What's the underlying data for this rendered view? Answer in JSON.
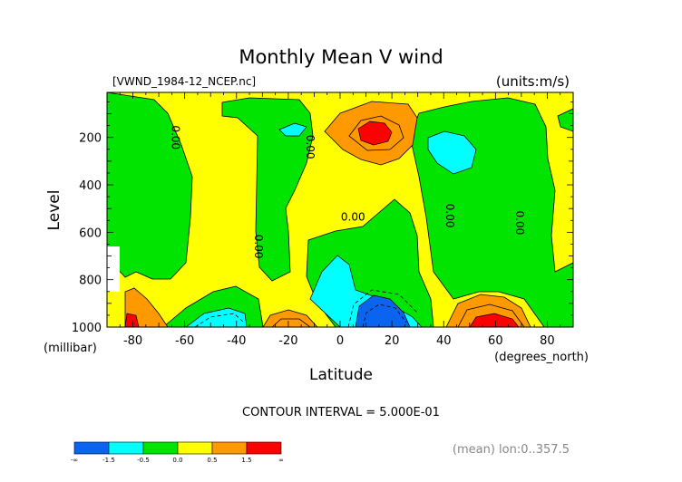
{
  "chart_data": {
    "type": "heatmap",
    "title": "Monthly Mean V wind",
    "dataset": "[VWND_1984-12_NCEP.nc]",
    "units": "(units:m/s)",
    "xlabel": "Latitude",
    "xunits": "(degrees_north)",
    "ylabel": "Level",
    "yunits": "(millibar)",
    "xlim": [
      -90,
      90
    ],
    "ylim": [
      1000,
      10
    ],
    "x_ticks": [
      -80,
      -60,
      -40,
      -20,
      0,
      20,
      40,
      60,
      80
    ],
    "y_ticks": [
      200,
      400,
      600,
      800,
      1000
    ],
    "contour_labels": [
      {
        "text": "0.00",
        "x": -65,
        "y": 200
      },
      {
        "text": "0.00",
        "x": -13,
        "y": 240
      },
      {
        "text": "0.00",
        "x": -33,
        "y": 660
      },
      {
        "text": "0.00",
        "x": 5,
        "y": 550
      },
      {
        "text": "0.00",
        "x": 41,
        "y": 530
      },
      {
        "text": "0.00",
        "x": 68,
        "y": 560
      }
    ],
    "contour_interval": "CONTOUR INTERVAL = 5.000E-01",
    "subset_note": "(mean) lon:0..357.5",
    "colorbar": {
      "colors": [
        "#0a64f0",
        "#00ffff",
        "#00e400",
        "#ffff00",
        "#ff9900",
        "#ff0000"
      ],
      "labels": [
        "-∞",
        "-1.5",
        "-0.5",
        "0.0",
        "0.5",
        "1.5",
        "∞"
      ]
    }
  }
}
